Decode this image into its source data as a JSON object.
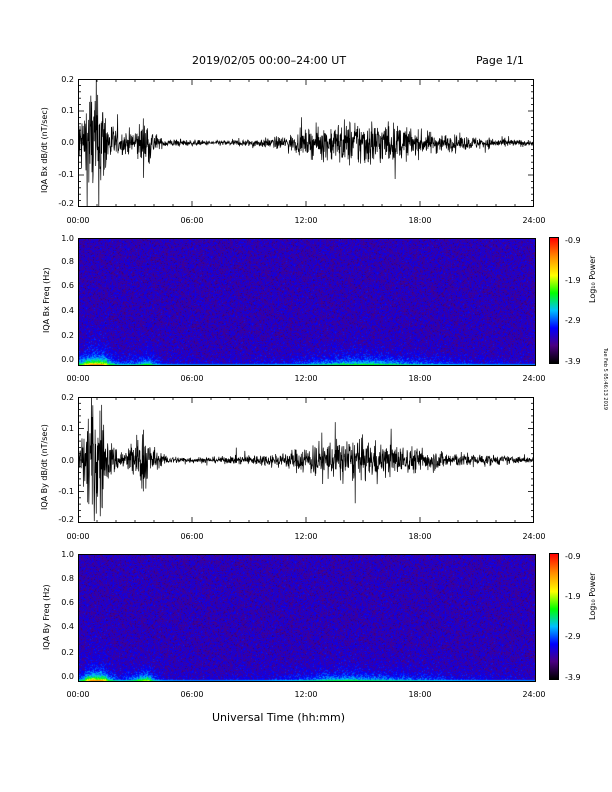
{
  "header": {
    "title": "2019/02/05  00:00–24:00 UT",
    "page": "Page 1/1"
  },
  "xlabel": "Universal Time (hh:mm)",
  "stamp": "Tue Feb 5 05:46:13 2019",
  "colors": {
    "trace": "#000000",
    "spectro_bg": "#3a1a7a",
    "colorbar": [
      "#000000",
      "#4b0082",
      "#0000ff",
      "#00bfff",
      "#00ff00",
      "#ffff00",
      "#ff8c00",
      "#ff0000"
    ]
  },
  "chart_data": [
    {
      "type": "line",
      "title": "",
      "ylabel": "IQA Bx dB/dt (nT/sec)",
      "xlabel": "",
      "x_ticks": [
        "00:00",
        "06:00",
        "12:00",
        "18:00",
        "24:00"
      ],
      "xlim": [
        0,
        24
      ],
      "y_ticks": [
        "0.2",
        "0.1",
        "0.0",
        "-0.1",
        "-0.2"
      ],
      "ylim": [
        -0.2,
        0.2
      ],
      "envelope": {
        "x_hours": [
          0,
          0.3,
          0.6,
          0.9,
          1.2,
          1.5,
          1.8,
          2.2,
          2.6,
          3.0,
          3.3,
          3.6,
          3.9,
          4.3,
          5,
          6,
          7,
          8,
          9,
          10,
          11,
          12,
          13,
          14,
          15,
          16,
          17,
          18,
          19,
          20,
          21,
          22,
          23,
          24
        ],
        "amplitude": [
          0.1,
          0.15,
          0.25,
          0.25,
          0.25,
          0.12,
          0.08,
          0.04,
          0.05,
          0.06,
          0.09,
          0.11,
          0.06,
          0.02,
          0.015,
          0.012,
          0.01,
          0.012,
          0.015,
          0.02,
          0.03,
          0.05,
          0.07,
          0.09,
          0.1,
          0.09,
          0.07,
          0.05,
          0.04,
          0.03,
          0.025,
          0.02,
          0.015,
          0.01
        ]
      }
    },
    {
      "type": "heatmap",
      "title": "",
      "ylabel": "IQA Bx Freq (Hz)",
      "xlabel": "",
      "x_ticks": [
        "00:00",
        "06:00",
        "12:00",
        "18:00",
        "24:00"
      ],
      "xlim": [
        0,
        24
      ],
      "y_ticks": [
        "1.0",
        "0.8",
        "0.6",
        "0.4",
        "0.2",
        "0.0"
      ],
      "ylim": [
        0,
        1.0
      ],
      "colorbar": {
        "ticks": [
          "-0.9",
          "-1.9",
          "-2.9",
          "-3.9"
        ],
        "range": [
          -3.9,
          -0.9
        ],
        "label": "Log₁₀ Power"
      }
    },
    {
      "type": "line",
      "title": "",
      "ylabel": "IQA By dB/dt (nT/sec)",
      "xlabel": "",
      "x_ticks": [
        "00:00",
        "06:00",
        "12:00",
        "18:00",
        "24:00"
      ],
      "xlim": [
        0,
        24
      ],
      "y_ticks": [
        "0.2",
        "0.1",
        "0.0",
        "-0.1",
        "-0.2"
      ],
      "ylim": [
        -0.2,
        0.2
      ],
      "envelope": {
        "x_hours": [
          0,
          0.3,
          0.6,
          0.9,
          1.2,
          1.5,
          1.8,
          2.2,
          2.6,
          3.0,
          3.3,
          3.6,
          3.9,
          4.3,
          5,
          6,
          7,
          8,
          9,
          10,
          11,
          12,
          13,
          14,
          15,
          16,
          17,
          18,
          19,
          20,
          21,
          22,
          23,
          24
        ],
        "amplitude": [
          0.06,
          0.12,
          0.25,
          0.25,
          0.25,
          0.1,
          0.07,
          0.04,
          0.06,
          0.09,
          0.12,
          0.14,
          0.06,
          0.025,
          0.015,
          0.012,
          0.012,
          0.015,
          0.02,
          0.025,
          0.035,
          0.06,
          0.08,
          0.09,
          0.08,
          0.07,
          0.06,
          0.05,
          0.04,
          0.03,
          0.025,
          0.02,
          0.015,
          0.012
        ]
      }
    },
    {
      "type": "heatmap",
      "title": "",
      "ylabel": "IQA By Freq (Hz)",
      "xlabel": "",
      "x_ticks": [
        "00:00",
        "06:00",
        "12:00",
        "18:00",
        "24:00"
      ],
      "xlim": [
        0,
        24
      ],
      "y_ticks": [
        "1.0",
        "0.8",
        "0.6",
        "0.4",
        "0.2",
        "0.0"
      ],
      "ylim": [
        0,
        1.0
      ],
      "colorbar": {
        "ticks": [
          "-0.9",
          "-1.9",
          "-2.9",
          "-3.9"
        ],
        "range": [
          -3.9,
          -0.9
        ],
        "label": "Log₁₀ Power"
      }
    }
  ]
}
